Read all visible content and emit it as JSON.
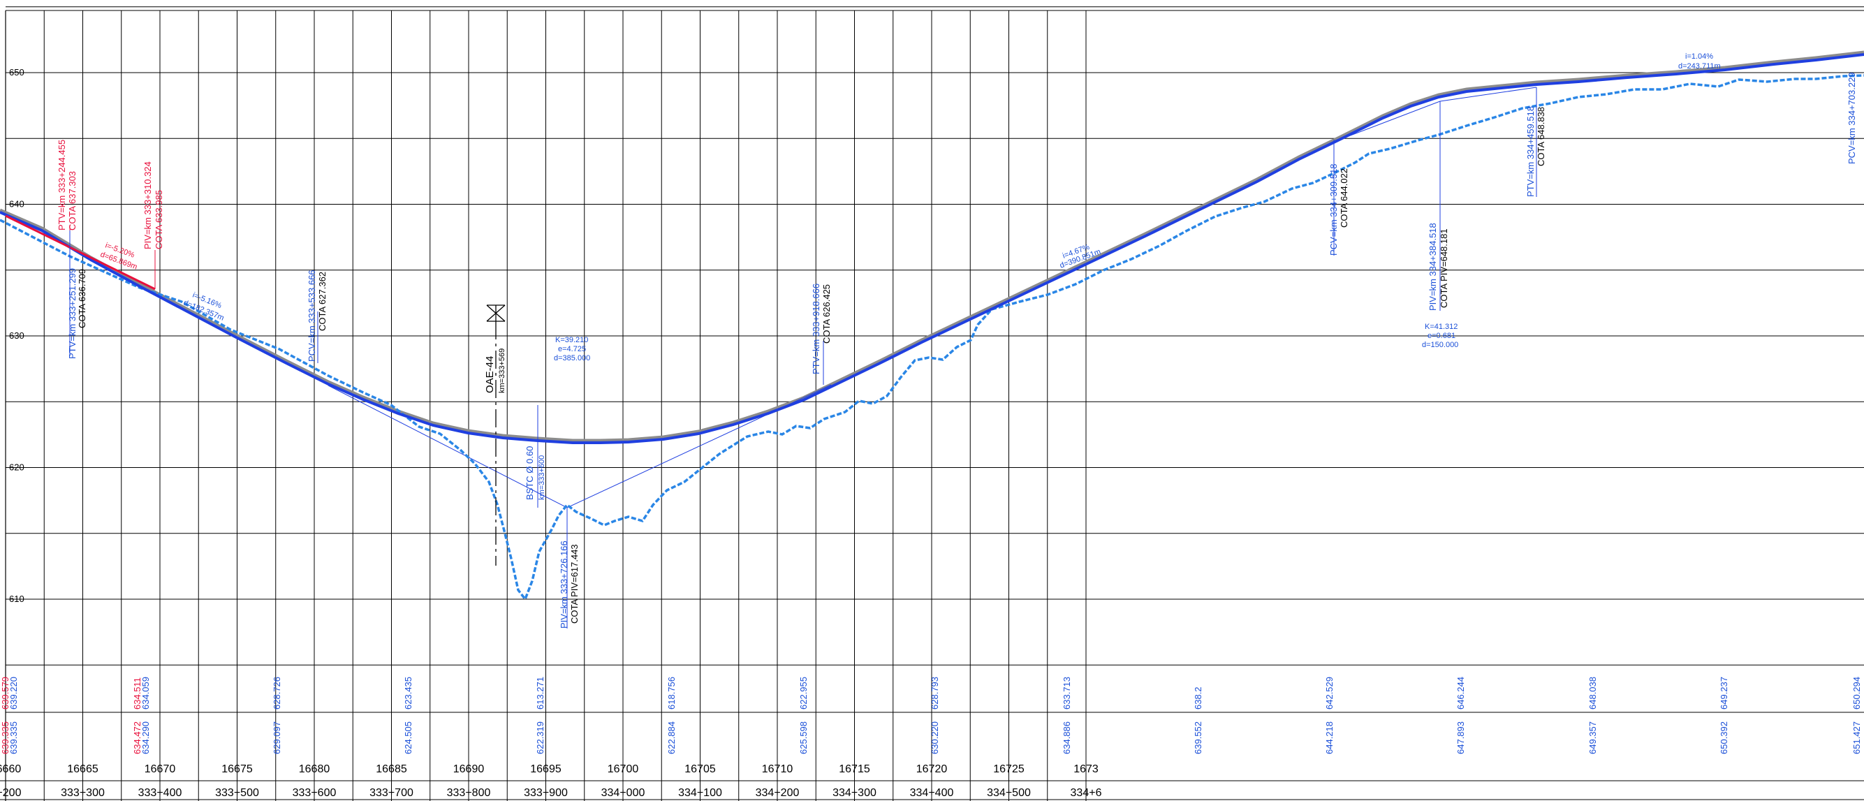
{
  "colors": {
    "grid": "#000000",
    "design": "#1f3fe0",
    "design_shadow": "#8c8c8c",
    "terrain": "#2a86e6",
    "red": "#e8103c",
    "text": "#000000",
    "blue_text": "#1a4fd8"
  },
  "elevation_ticks": [
    "650",
    "640",
    "630",
    "620",
    "610"
  ],
  "station_ticks": [
    "16660",
    "16665",
    "16670",
    "16675",
    "16680",
    "16685",
    "16690",
    "16695",
    "16700",
    "16705",
    "16710",
    "16715",
    "16720",
    "16725",
    "1673"
  ],
  "km_ticks": [
    "3+200",
    "333+300",
    "333+400",
    "333+500",
    "333+600",
    "333+700",
    "333+800",
    "333+900",
    "334+000",
    "334+100",
    "334+200",
    "334+300",
    "334+400",
    "334+500",
    "334+6"
  ],
  "terrain_row": [
    "639.579",
    "639.220",
    "634.511",
    "634.059",
    "628.726",
    "623.435",
    "613.271",
    "618.756",
    "622.955",
    "628.793",
    "633.713",
    "638.2",
    "642.529",
    "646.244",
    "648.038",
    "649.237",
    "650.294"
  ],
  "design_row": [
    "639.335",
    "639.335",
    "634.472",
    "634.290",
    "629.097",
    "624.505",
    "622.319",
    "622.884",
    "625.598",
    "630.220",
    "634.886",
    "639.552",
    "644.218",
    "647.893",
    "649.357",
    "650.392",
    "651.427"
  ],
  "annotations": {
    "ptv_a_1": "PTV=km 333+244.455",
    "ptv_a_2": "COTA 637.303",
    "piv_a_1": "PIV=km 333+310.324",
    "piv_a_2": "COTA 633.985",
    "grade_a_1": "i=-5.20%",
    "grade_a_2": "d=65.869m",
    "ptv_b_1": "PTV=km 333+251.299",
    "ptv_b_2": "COTA 636.709",
    "grade_b_1": "i=-5.16%",
    "grade_b_2": "d=182.357m",
    "pcv_c_1": "PCV=km 333+533.666",
    "pcv_c_2": "COTA 627.362",
    "oae_1": "OAE-44",
    "oae_2": "km=333+569",
    "curve_1_1": "K=39.210",
    "curve_1_2": "e=4.725",
    "curve_1_3": "d=385.000",
    "bstc_1": "BSTC Ø 0.60",
    "bstc_2": "km=333+600",
    "piv_min_1": "PIV=km 333+726.166",
    "piv_min_2": "COTA PIV=617.443",
    "ptv_d_1": "PTV=km 333+918.666",
    "ptv_d_2": "COTA 626.425",
    "grade_c_1": "i=4.67%",
    "grade_c_2": "d=390.851m",
    "pcv_e_1": "PCV=km 334+309.518",
    "pcv_e_2": "COTA 644.022",
    "piv_e_1": "PIV=km 334+384.518",
    "piv_e_2": "COTA PIV=648.181",
    "curve_2_1": "K=41.312",
    "curve_2_2": "e=0.681",
    "curve_2_3": "d=150.000",
    "ptv_f_1": "PTV=km 334+459.518",
    "ptv_f_2": "COTA 648.838",
    "grade_d_1": "i=1.04%",
    "grade_d_2": "d=243.711m",
    "pcv_g_1": "PCV=km 334+703.229"
  }
}
